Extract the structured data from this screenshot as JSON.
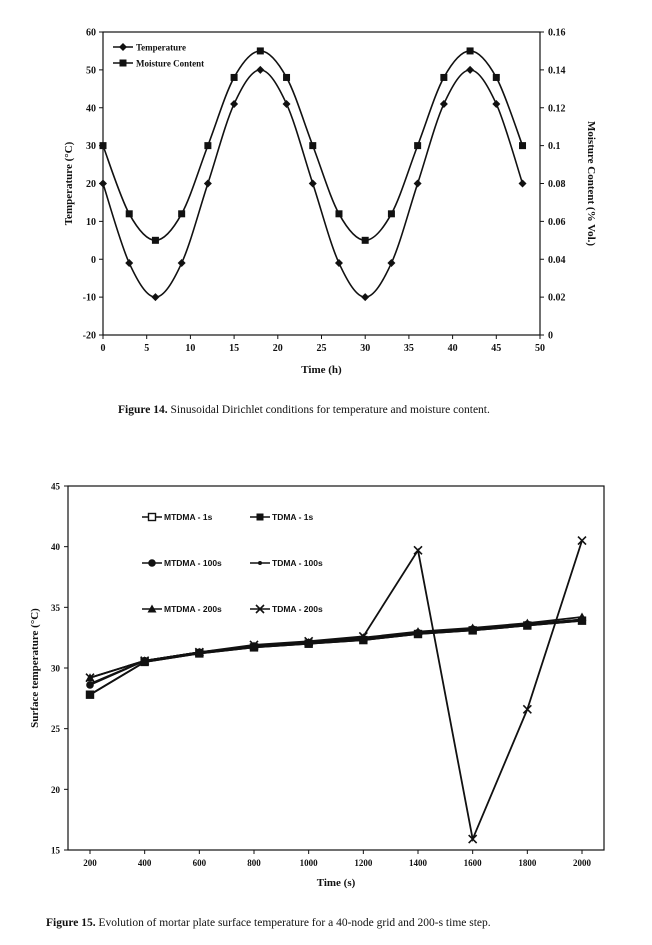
{
  "figures": [
    {
      "caption_label": "Figure 14.",
      "caption_text": "Sinusoidal Dirichlet conditions for temperature and moisture content."
    },
    {
      "caption_label": "Figure 15.",
      "caption_text": "Evolution of mortar plate surface temperature for a 40-node grid and 200-s time step."
    }
  ],
  "chart_data": [
    {
      "type": "line",
      "xlabel": "Time (h)",
      "ylabel": "Temperature (°C)",
      "y2label": "Moisture Content (% Vol.)",
      "xlim": [
        0,
        50
      ],
      "ylim": [
        -20,
        60
      ],
      "y2lim": [
        0,
        0.16
      ],
      "xticks": [
        0,
        5,
        10,
        15,
        20,
        25,
        30,
        35,
        40,
        45,
        50
      ],
      "yticks": [
        -20,
        -10,
        0,
        10,
        20,
        30,
        40,
        50,
        60
      ],
      "y2ticks": [
        "0",
        "0.02",
        "0.04",
        "0.06",
        "0.08",
        "0.1",
        "0.12",
        "0.14",
        "0.16"
      ],
      "grid": false,
      "legend_position": "top-left",
      "x": [
        0,
        3,
        6,
        9,
        12,
        15,
        18,
        21,
        24,
        27,
        30,
        33,
        36,
        39,
        42,
        45,
        48
      ],
      "series": [
        {
          "name": "Temperature",
          "axis": "left",
          "marker": "diamond",
          "values": [
            20,
            -1,
            -10,
            -1,
            20,
            41,
            50,
            41,
            20,
            -1,
            -10,
            -1,
            20,
            41,
            50,
            41,
            20
          ]
        },
        {
          "name": "Moisture Content",
          "axis": "right",
          "marker": "square",
          "values": [
            0.1,
            0.064,
            0.05,
            0.064,
            0.1,
            0.136,
            0.15,
            0.136,
            0.1,
            0.064,
            0.05,
            0.064,
            0.1,
            0.136,
            0.15,
            0.136,
            0.1
          ]
        }
      ]
    },
    {
      "type": "line",
      "xlabel": "Time (s)",
      "ylabel": "Surface temperature (°C)",
      "xlim": [
        200,
        2000
      ],
      "ylim": [
        15,
        45
      ],
      "categories": [
        200,
        400,
        600,
        800,
        1000,
        1200,
        1400,
        1600,
        1800,
        2000
      ],
      "yticks": [
        15,
        20,
        25,
        30,
        35,
        40,
        45
      ],
      "grid": false,
      "legend_position": "top-left",
      "series": [
        {
          "name": "MTDMA - 1s",
          "marker": "open-square",
          "values": [
            27.8,
            30.5,
            31.2,
            31.7,
            32.0,
            32.3,
            32.8,
            33.1,
            33.5,
            33.9
          ]
        },
        {
          "name": "TDMA - 1s",
          "marker": "filled-square",
          "values": [
            27.8,
            30.5,
            31.2,
            31.7,
            32.0,
            32.3,
            32.8,
            33.1,
            33.5,
            33.9
          ]
        },
        {
          "name": "MTDMA - 100s",
          "marker": "circle",
          "values": [
            28.6,
            30.6,
            31.3,
            31.8,
            32.1,
            32.4,
            32.9,
            33.2,
            33.6,
            34.0
          ]
        },
        {
          "name": "TDMA - 100s",
          "marker": "dot",
          "values": [
            28.7,
            30.6,
            31.3,
            31.8,
            32.1,
            32.4,
            32.9,
            33.2,
            33.6,
            34.0
          ]
        },
        {
          "name": "MTDMA - 200s",
          "marker": "triangle",
          "values": [
            29.2,
            30.6,
            31.3,
            31.8,
            32.1,
            32.5,
            33.0,
            33.3,
            33.7,
            34.2
          ]
        },
        {
          "name": "TDMA - 200s",
          "marker": "cross",
          "values": [
            29.2,
            30.6,
            31.3,
            31.9,
            32.2,
            32.6,
            39.7,
            15.9,
            26.6,
            40.5
          ]
        }
      ]
    }
  ]
}
